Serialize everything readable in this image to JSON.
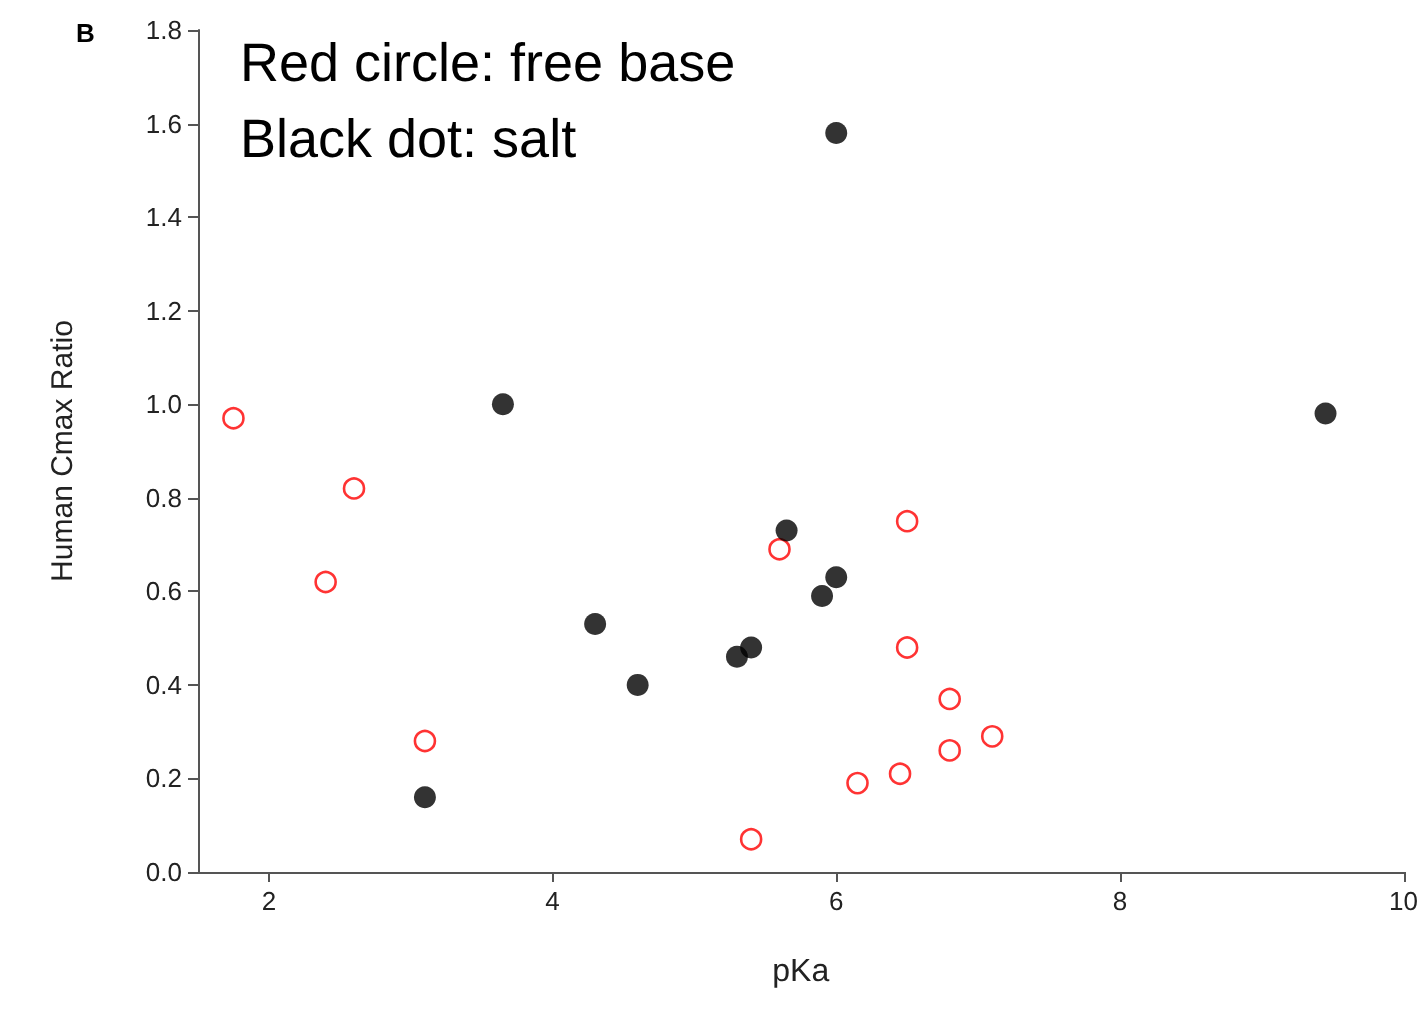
{
  "chart_data": {
    "type": "scatter",
    "xlabel": "pKa",
    "ylabel": "Human Cmax Ratio",
    "annotations": [
      "B",
      "Red circle: free base",
      "Black dot: salt"
    ],
    "xlim": [
      1.5,
      10
    ],
    "xticks": [
      2,
      4,
      6,
      8,
      10
    ],
    "ylim": [
      0,
      1.8
    ],
    "yticks": [
      {
        "value": 0,
        "label": "0.0"
      },
      0.2,
      0.4,
      0.6,
      0.8,
      {
        "value": 1,
        "label": "1.0"
      },
      1.2,
      1.4,
      1.6,
      1.8
    ],
    "grid": false,
    "marker": "circle",
    "series": [
      {
        "color": "#ff0000",
        "x": [
          1.75,
          2.4,
          2.6,
          3.1,
          5.4,
          5.6,
          6.15,
          6.5,
          6.5,
          6.45,
          6.8,
          6.8,
          7.1
        ],
        "values": [
          0.97,
          0.62,
          0.82,
          0.28,
          0.07,
          0.69,
          0.19,
          0.75,
          0.48,
          0.21,
          0.37,
          0.26,
          0.29
        ]
      },
      {
        "color": "#000000",
        "x": [
          3.1,
          3.65,
          4.3,
          4.6,
          5.3,
          5.4,
          5.65,
          5.9,
          6.0,
          6.0,
          9.45
        ],
        "values": [
          0.16,
          1.0,
          0.53,
          0.4,
          0.46,
          0.48,
          0.73,
          0.59,
          0.63,
          1.58,
          0.98
        ]
      }
    ]
  }
}
